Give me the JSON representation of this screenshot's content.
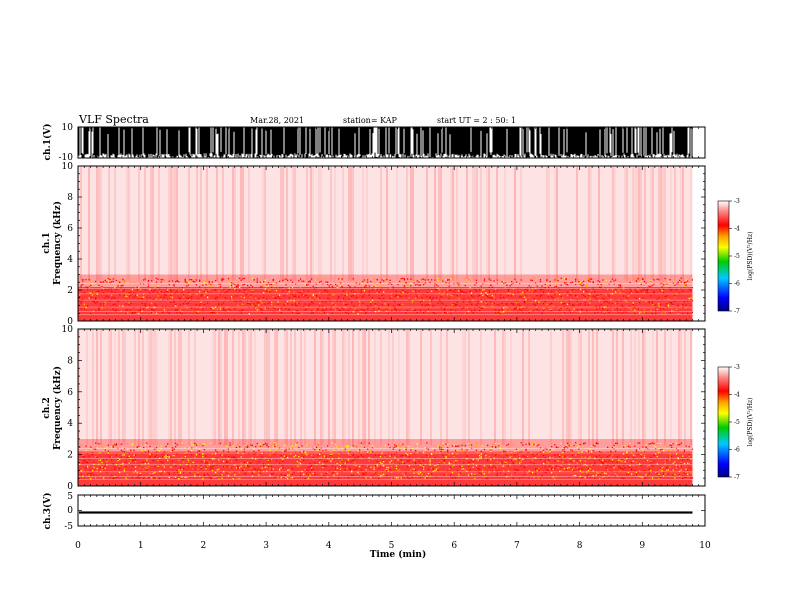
{
  "header": {
    "title": "VLF Spectra",
    "date": "Mar.28, 2021",
    "station": "station= KAP",
    "start": "start  UT =   2 : 50: 1"
  },
  "colors": {
    "spectrogram_background": "#ffffff",
    "trace": "#000000",
    "colormap": [
      "#ffffff",
      "#ff9a9a",
      "#ff2a2a",
      "#ff0000",
      "#ffa000",
      "#ffff00",
      "#00cc00",
      "#00c8ff",
      "#0000ff",
      "#000080"
    ]
  },
  "chart_data": [
    {
      "type": "line",
      "name": "ch1-waveform",
      "ylabel": "ch.1(V)",
      "ylim": [
        -10,
        10
      ],
      "yticks": [
        "10",
        "-10"
      ],
      "xlim": [
        0,
        10
      ],
      "description_values": "dense saturated waveform spanning roughly -10 to 10 V with frequent gaps",
      "amplitude_range": [
        -10,
        10
      ]
    },
    {
      "type": "heatmap",
      "name": "ch1-spectrogram",
      "ylabel": "ch.1\nFrequency (kHz)",
      "ylabel_lines": [
        "ch.1",
        "Frequency (kHz)"
      ],
      "ylim": [
        0,
        10
      ],
      "yticks": [
        "0",
        "2",
        "4",
        "6",
        "8",
        "10"
      ],
      "xlim": [
        0,
        9.8
      ],
      "bands": [
        {
          "f_low": 0.0,
          "f_high": 0.8,
          "level": -3.6
        },
        {
          "f_low": 0.8,
          "f_high": 1.2,
          "level": -3.4
        },
        {
          "f_low": 1.2,
          "f_high": 2.2,
          "level": -3.5
        },
        {
          "f_low": 2.2,
          "f_high": 3.0,
          "level": -3.9
        },
        {
          "f_low": 3.0,
          "f_high": 10.0,
          "level": -4.6
        }
      ],
      "colorbar": {
        "label": "log(PSD)(V²/Hz)",
        "range": [
          -7,
          -3
        ],
        "ticks": [
          "-3",
          "-4",
          "-5",
          "-6",
          "-7"
        ]
      }
    },
    {
      "type": "heatmap",
      "name": "ch2-spectrogram",
      "ylabel": "ch.2\nFrequency (kHz)",
      "ylabel_lines": [
        "ch.2",
        "Frequency (kHz)"
      ],
      "ylim": [
        0,
        10
      ],
      "yticks": [
        "0",
        "2",
        "4",
        "6",
        "8",
        "10"
      ],
      "xlim": [
        0,
        9.8
      ],
      "bands": [
        {
          "f_low": 0.0,
          "f_high": 0.8,
          "level": -3.4
        },
        {
          "f_low": 0.8,
          "f_high": 2.2,
          "level": -3.3
        },
        {
          "f_low": 2.2,
          "f_high": 3.0,
          "level": -3.8
        },
        {
          "f_low": 3.0,
          "f_high": 10.0,
          "level": -4.5
        }
      ],
      "colorbar": {
        "label": "log(PSD)(V²/Hz)",
        "range": [
          -7,
          -3
        ],
        "ticks": [
          "-3",
          "-4",
          "-5",
          "-6",
          "-7"
        ]
      }
    },
    {
      "type": "line",
      "name": "ch3-waveform",
      "ylabel": "ch.3(V)",
      "ylim": [
        -5,
        5
      ],
      "yticks": [
        "5",
        "0",
        "-5"
      ],
      "xlim": [
        0,
        10
      ],
      "level": -0.7,
      "amplitude_range": [
        -1.0,
        -0.3
      ]
    }
  ],
  "xaxis": {
    "label": "Time (min)",
    "ticks": [
      "0",
      "1",
      "2",
      "3",
      "4",
      "5",
      "6",
      "7",
      "8",
      "9",
      "10"
    ],
    "range": [
      0,
      10
    ],
    "data_end": 9.8
  }
}
